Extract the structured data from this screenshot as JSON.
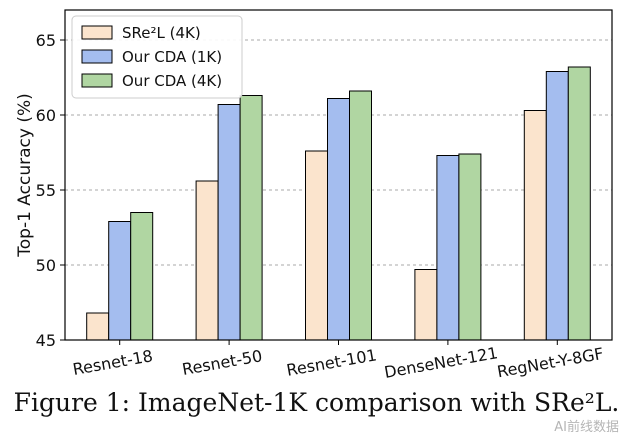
{
  "chart_data": {
    "type": "bar",
    "ylabel": "Top-1 Accuracy (%)",
    "xlabel": "",
    "categories": [
      "Resnet-18",
      "Resnet-50",
      "Resnet-101",
      "DenseNet-121",
      "RegNet-Y-8GF"
    ],
    "ylim": [
      45,
      67
    ],
    "yticks": [
      45,
      50,
      55,
      60,
      65
    ],
    "grid": true,
    "legend_position": "top-left",
    "series": [
      {
        "name": "SRe²L (4K)",
        "color": "#fbe4cd",
        "values": [
          46.8,
          55.6,
          57.6,
          49.7,
          60.3
        ]
      },
      {
        "name": "Our CDA (1K)",
        "color": "#a4bdef",
        "values": [
          52.9,
          60.7,
          61.1,
          57.3,
          62.9
        ]
      },
      {
        "name": "Our CDA (4K)",
        "color": "#b0d6a2",
        "values": [
          53.5,
          61.3,
          61.6,
          57.4,
          63.2
        ]
      }
    ]
  },
  "caption": "Figure 1: ImageNet-1K comparison with SRe²L.",
  "watermark": "AI前线数据"
}
